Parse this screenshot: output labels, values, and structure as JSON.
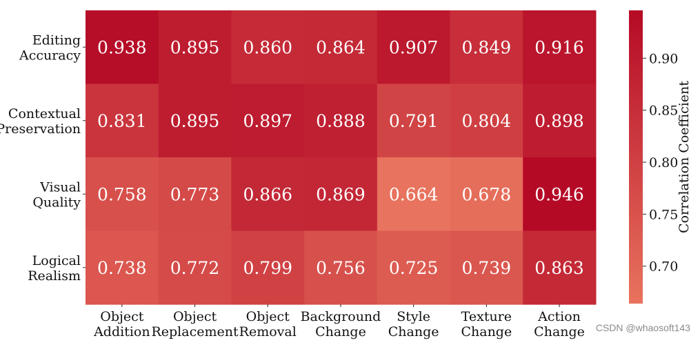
{
  "chart_data": {
    "type": "heatmap",
    "columns": [
      [
        "Object",
        "Addition"
      ],
      [
        "Object",
        "Replacement"
      ],
      [
        "Object",
        "Removal"
      ],
      [
        "Background",
        "Change"
      ],
      [
        "Style",
        "Change"
      ],
      [
        "Texture",
        "Change"
      ],
      [
        "Action",
        "Change"
      ]
    ],
    "rows": [
      [
        "Editing",
        "Accuracy"
      ],
      [
        "Contextual",
        "Preservation"
      ],
      [
        "Visual",
        "Quality"
      ],
      [
        "Logical",
        "Realism"
      ]
    ],
    "values": [
      [
        0.938,
        0.895,
        0.86,
        0.864,
        0.907,
        0.849,
        0.916
      ],
      [
        0.831,
        0.895,
        0.897,
        0.888,
        0.791,
        0.804,
        0.898
      ],
      [
        0.758,
        0.773,
        0.866,
        0.869,
        0.664,
        0.678,
        0.946
      ],
      [
        0.738,
        0.772,
        0.799,
        0.756,
        0.725,
        0.739,
        0.863
      ]
    ],
    "colorbar": {
      "label": "Correlation Coefficient",
      "ticks": [
        "0.70",
        "0.75",
        "0.80",
        "0.85",
        "0.90"
      ],
      "range": [
        0.664,
        0.946
      ],
      "color_low": "#e8735e",
      "color_high": "#b50a26"
    }
  },
  "watermark": "CSDN @whaosoft143"
}
